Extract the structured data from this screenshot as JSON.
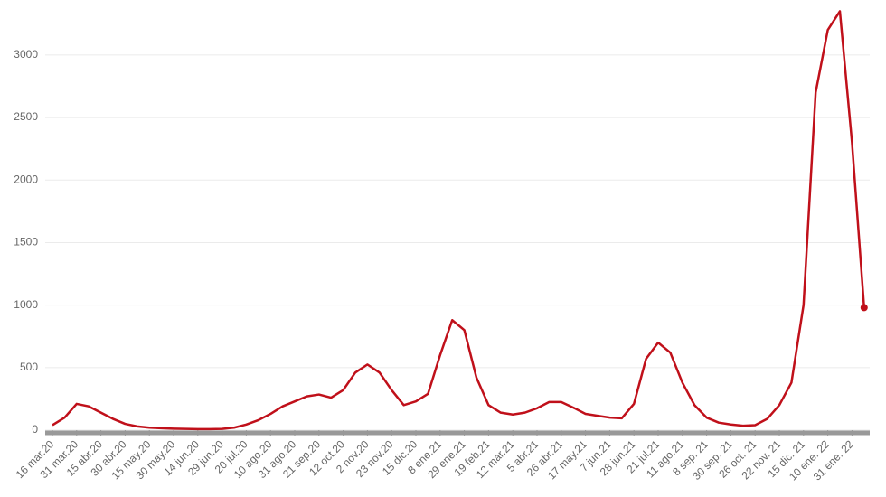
{
  "chart_data": {
    "type": "line",
    "categories": [
      "16 mar.20",
      null,
      "31 mar.20",
      null,
      "15 abr.20",
      null,
      "30 abr.20",
      null,
      "15 may.20",
      null,
      "30 may.20",
      null,
      "14 jun.20",
      null,
      "29 jun.20",
      null,
      "20 jul.20",
      null,
      "10 ago.20",
      null,
      "31 ago.20",
      null,
      "21 sep.20",
      null,
      "12 oct.20",
      null,
      "2 nov.20",
      null,
      "23 nov.20",
      null,
      "15 dic.20",
      null,
      "8 ene.21",
      null,
      "29 ene.21",
      null,
      "19 feb.21",
      null,
      "12 mar.21",
      null,
      "5 abr.21",
      null,
      "26 abr.21",
      null,
      "17 may.21",
      null,
      "7 jun.21",
      null,
      "28 jun.21",
      null,
      "21 jul.21",
      null,
      "11 ago.21",
      null,
      "8 sep. 21",
      null,
      "30 sep. 21",
      null,
      "26 oct. 21",
      null,
      "22 nov. 21",
      null,
      "15 dic. 21",
      null,
      "10 ene. 22",
      null,
      "31 ene. 22",
      null
    ],
    "series": [
      {
        "color": "#c0101a",
        "values": [
          40,
          100,
          210,
          190,
          140,
          90,
          50,
          30,
          20,
          15,
          12,
          10,
          8,
          8,
          10,
          20,
          45,
          80,
          130,
          190,
          230,
          270,
          285,
          260,
          320,
          460,
          525,
          460,
          320,
          200,
          230,
          290,
          600,
          880,
          800,
          420,
          200,
          140,
          125,
          140,
          175,
          225,
          225,
          180,
          130,
          115,
          100,
          95,
          210,
          570,
          700,
          620,
          380,
          200,
          100,
          60,
          45,
          35,
          40,
          90,
          200,
          380,
          1000,
          2700,
          3200,
          3350,
          2300,
          980
        ]
      }
    ],
    "ylim": [
      0,
      3440
    ],
    "yticks": [
      0,
      500,
      1000,
      1500,
      2000,
      2500,
      3000
    ],
    "grid": true
  }
}
